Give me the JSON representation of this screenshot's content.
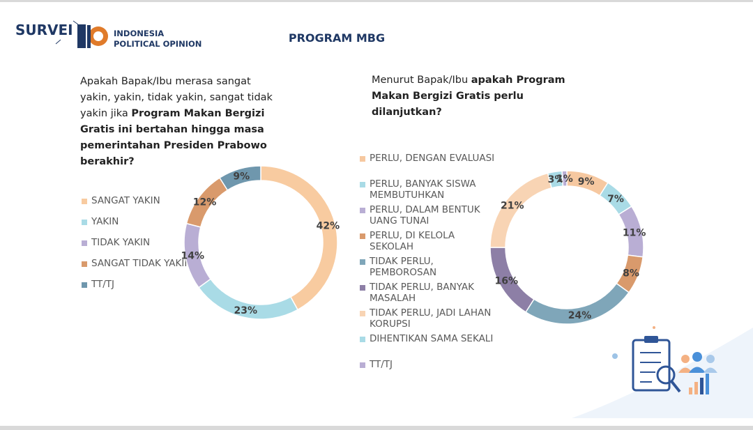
{
  "header": {
    "brand": "SURVEI",
    "org_line1": "INDONESIA",
    "org_line2": "POLITICAL OPINION",
    "title": "PROGRAM MBG"
  },
  "chart_data": [
    {
      "type": "donut",
      "question": [
        {
          "text": "Apakah Bapak/Ibu merasa sangat yakin, yakin, tidak yakin, sangat tidak yakin jika ",
          "bold": false
        },
        {
          "text": "Program Makan Bergizi Gratis ini bertahan hingga masa pemerintahan Presiden Prabowo berakhir?",
          "bold": true
        }
      ],
      "categories": [
        "SANGAT YAKIN",
        "YAKIN",
        "TIDAK YAKIN",
        "SANGAT TIDAK YAKIN",
        "TT/TJ"
      ],
      "values": [
        42,
        23,
        14,
        12,
        9
      ],
      "value_labels": [
        "42%",
        "23%",
        "14%",
        "12%",
        "9%"
      ],
      "colors": [
        "#f8cba0",
        "#a9dbe6",
        "#b9aed4",
        "#d99a6c",
        "#6f97ad"
      ]
    },
    {
      "type": "donut",
      "question": [
        {
          "text": "Menurut Bapak/Ibu ",
          "bold": false
        },
        {
          "text": "apakah Program Makan Bergizi Gratis perlu dilanjutkan?",
          "bold": true
        }
      ],
      "categories": [
        "PERLU, DENGAN EVALUASI",
        "PERLU, BANYAK SISWA MEMBUTUHKAN",
        "PERLU, DALAM BENTUK UANG TUNAI",
        "PERLU, DI KELOLA SEKOLAH",
        "TIDAK PERLU, PEMBOROSAN",
        "TIDAK PERLU, BANYAK MASALAH",
        "TIDAK PERLU, JADI LAHAN KORUPSI",
        "DIHENTIKAN SAMA SEKALI",
        "TT/TJ"
      ],
      "values": [
        9,
        7,
        11,
        8,
        24,
        16,
        21,
        3,
        1
      ],
      "value_labels": [
        "9%",
        "7%",
        "11%",
        "8%",
        "24%",
        "16%",
        "21%",
        "3%",
        "1%"
      ],
      "colors": [
        "#f6c8a0",
        "#a9dbe6",
        "#b9aed4",
        "#d99a6c",
        "#7fa6b9",
        "#8d7fa6",
        "#f8d4b4",
        "#a9dbe6",
        "#b9aed4"
      ]
    }
  ]
}
